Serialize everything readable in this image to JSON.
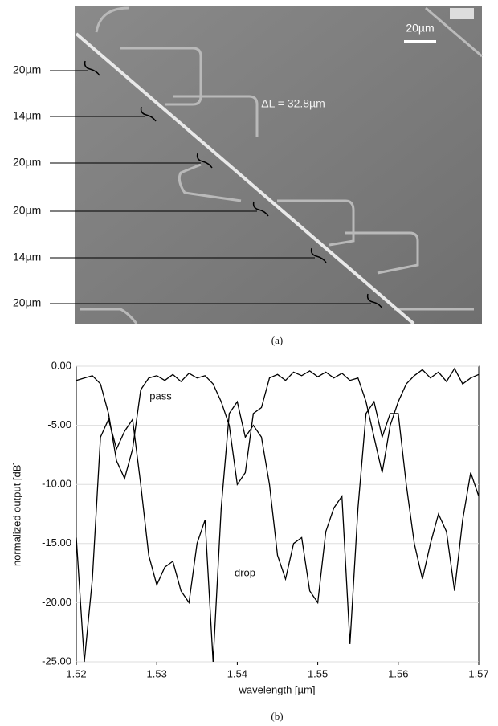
{
  "figure_a": {
    "labels": [
      "20µm",
      "14µm",
      "20µm",
      "20µm",
      "14µm",
      "20µm"
    ],
    "scale_bar": "20µm",
    "delta_label": "ΔL = 32.8µm",
    "caption": "(a)"
  },
  "chart_data": {
    "type": "line",
    "caption": "(b)",
    "x_label": "wavelength [µm]",
    "y_label": "normalized output [dB]",
    "x": [
      1.52,
      1.521,
      1.522,
      1.523,
      1.524,
      1.525,
      1.526,
      1.527,
      1.528,
      1.529,
      1.53,
      1.531,
      1.532,
      1.533,
      1.534,
      1.535,
      1.536,
      1.537,
      1.538,
      1.539,
      1.54,
      1.541,
      1.542,
      1.543,
      1.544,
      1.545,
      1.546,
      1.547,
      1.548,
      1.549,
      1.55,
      1.551,
      1.552,
      1.553,
      1.554,
      1.555,
      1.556,
      1.557,
      1.558,
      1.559,
      1.56,
      1.561,
      1.562,
      1.563,
      1.564,
      1.565,
      1.566,
      1.567,
      1.568,
      1.569,
      1.57
    ],
    "series": [
      {
        "name": "pass",
        "color": "#000000",
        "values": [
          -1.2,
          -1,
          -0.8,
          -1.5,
          -4,
          -8,
          -9.5,
          -7,
          -2,
          -1,
          -0.8,
          -1.2,
          -0.7,
          -1.3,
          -0.6,
          -1,
          -0.8,
          -1.5,
          -3,
          -5,
          -10,
          -9,
          -4,
          -3.5,
          -1,
          -0.7,
          -1.2,
          -0.5,
          -0.8,
          -0.4,
          -0.9,
          -0.5,
          -1,
          -0.6,
          -1.2,
          -1,
          -3,
          -6,
          -9,
          -5,
          -3,
          -1.5,
          -0.8,
          -0.3,
          -1,
          -0.5,
          -1.3,
          -0.2,
          -1.5,
          -1,
          -0.7
        ]
      },
      {
        "name": "drop",
        "color": "#000000",
        "values": [
          -14.5,
          -25,
          -18,
          -6,
          -4.5,
          -7,
          -5.5,
          -4.5,
          -10,
          -16,
          -18.5,
          -17,
          -16.5,
          -19,
          -20,
          -15,
          -13,
          -25,
          -12,
          -4,
          -3,
          -6,
          -5,
          -6,
          -10,
          -16,
          -18,
          -15,
          -14.5,
          -19,
          -20,
          -14,
          -12,
          -11,
          -23.5,
          -12,
          -4,
          -3,
          -6,
          -4,
          -4,
          -10,
          -15,
          -18,
          -15,
          -12.5,
          -14,
          -19,
          -13,
          -9,
          -11
        ]
      }
    ],
    "xlim": [
      1.52,
      1.57
    ],
    "xticks": [
      1.52,
      1.53,
      1.54,
      1.55,
      1.56,
      1.57
    ],
    "ylim": [
      -25,
      0
    ],
    "yticks": [
      {
        "value": -25,
        "label": "-25.00"
      },
      {
        "value": -20,
        "label": "-20.00"
      },
      {
        "value": -15,
        "label": "-15.00"
      },
      {
        "value": -10,
        "label": "-10.00"
      },
      {
        "value": -5,
        "label": "-5.00"
      },
      {
        "value": 0,
        "label": "0.00"
      }
    ],
    "grid": true
  }
}
